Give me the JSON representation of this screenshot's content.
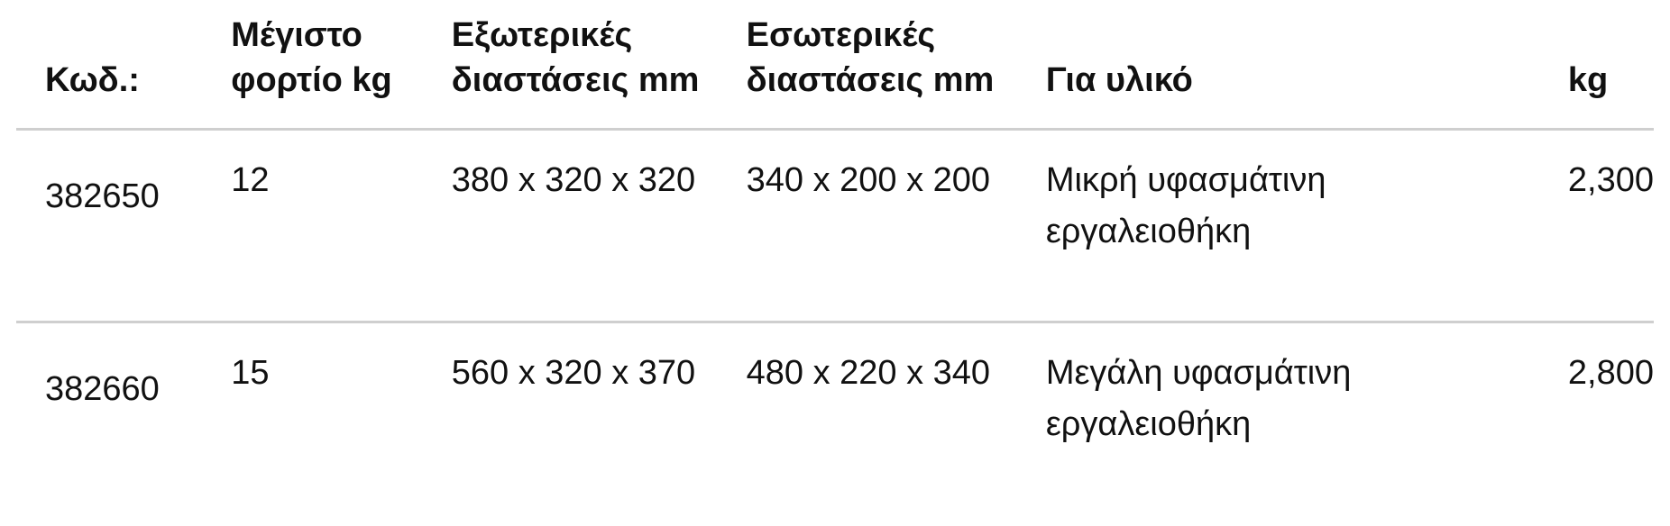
{
  "table": {
    "headers": [
      "Κωδ.:",
      "Μέγιστο φορτίο kg",
      "Εξωτερικές διαστάσεις mm",
      "Εσωτερικές διαστάσεις mm",
      "Για υλικό",
      "kg"
    ],
    "rows": [
      [
        "382650",
        "12",
        "380 x 320 x 320",
        "340 x 200 x 200",
        "Μικρή υφασμάτινη εργαλειοθήκη",
        "2,300"
      ],
      [
        "382660",
        "15",
        "560 x 320 x 370",
        "480 x 220 x 340",
        "Μεγάλη υφασμάτινη εργαλειοθήκη",
        "2,800"
      ]
    ]
  }
}
